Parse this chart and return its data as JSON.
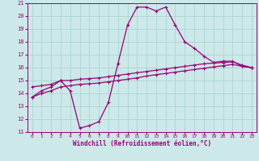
{
  "xlabel": "Windchill (Refroidissement éolien,°C)",
  "bg_color": "#cce8e8",
  "grid_color": "#aad4d4",
  "line_color": "#990077",
  "xlim": [
    -0.5,
    23.5
  ],
  "ylim": [
    11,
    21
  ],
  "xticks": [
    0,
    1,
    2,
    3,
    4,
    5,
    6,
    7,
    8,
    9,
    10,
    11,
    12,
    13,
    14,
    15,
    16,
    17,
    18,
    19,
    20,
    21,
    22,
    23
  ],
  "yticks": [
    11,
    12,
    13,
    14,
    15,
    16,
    17,
    18,
    19,
    20,
    21
  ],
  "series1_x": [
    0,
    1,
    2,
    3,
    4,
    5,
    6,
    7,
    8,
    9,
    10,
    11,
    12,
    13,
    14,
    15,
    16,
    17,
    18,
    19,
    20,
    21,
    22,
    23
  ],
  "series1_y": [
    13.7,
    14.2,
    14.5,
    15.0,
    14.2,
    11.3,
    11.5,
    11.8,
    13.3,
    16.3,
    19.3,
    20.7,
    20.7,
    20.4,
    20.7,
    19.3,
    18.0,
    17.5,
    16.9,
    16.4,
    16.5,
    16.5,
    16.1,
    16.0
  ],
  "series2_x": [
    0,
    1,
    2,
    3,
    4,
    5,
    6,
    7,
    8,
    9,
    10,
    11,
    12,
    13,
    14,
    15,
    16,
    17,
    18,
    19,
    20,
    21,
    22,
    23
  ],
  "series2_y": [
    14.5,
    14.6,
    14.7,
    15.0,
    15.0,
    15.1,
    15.15,
    15.2,
    15.3,
    15.4,
    15.5,
    15.6,
    15.7,
    15.8,
    15.9,
    16.0,
    16.1,
    16.2,
    16.3,
    16.35,
    16.4,
    16.45,
    16.2,
    16.0
  ],
  "series3_x": [
    0,
    1,
    2,
    3,
    4,
    5,
    6,
    7,
    8,
    9,
    10,
    11,
    12,
    13,
    14,
    15,
    16,
    17,
    18,
    19,
    20,
    21,
    22,
    23
  ],
  "series3_y": [
    13.7,
    14.0,
    14.2,
    14.5,
    14.6,
    14.7,
    14.75,
    14.8,
    14.9,
    15.0,
    15.1,
    15.2,
    15.35,
    15.45,
    15.55,
    15.65,
    15.75,
    15.85,
    15.95,
    16.05,
    16.15,
    16.25,
    16.1,
    16.0
  ]
}
